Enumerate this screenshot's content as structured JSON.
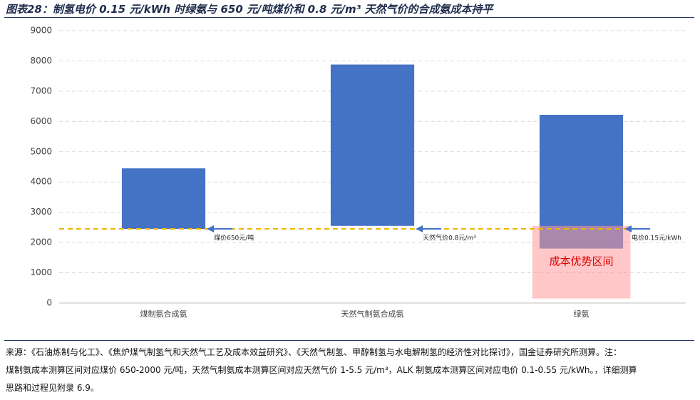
{
  "chart_data": {
    "type": "floating_bar",
    "title": "图表28：制氢电价 0.15 元/kWh 时绿氨与 650 元/吨煤价和 0.8 元/m³ 天然气价的合成氨成本持平",
    "categories": [
      "煤制氨合成氨",
      "天然气制氨合成氨",
      "绿氨"
    ],
    "low": [
      2450,
      2550,
      1800
    ],
    "high": [
      4450,
      7880,
      6220
    ],
    "color": "#4472c4",
    "ylim": [
      0,
      9000
    ],
    "yticks": [
      0,
      1000,
      2000,
      3000,
      4000,
      5000,
      6000,
      7000,
      8000,
      9000
    ],
    "grid": true,
    "reference_line": 2450,
    "reference_color": "#f0b400",
    "annotations": [
      "煤价650元/吨",
      "天然气价0.8元/m³",
      "电价0.15元/kWh"
    ],
    "zone": {
      "label": "成本优势区间",
      "range": [
        150,
        2550
      ],
      "color": "#ff9999"
    },
    "note": [
      "来源：《石油炼制与化工》、《焦炉煤气制氢气和天然气工艺及成本效益研究》、《天然气制氢、甲醇制氢与水电解制氢的经济性对比探讨》，国金证券研究所测算。注：",
      "煤制氨成本测算区间对应煤价 650-2000 元/吨，天然气制氨成本测算区间对应天然气价 1-5.5 元/m³，ALK 制氨成本测算区间对应电价 0.1-0.55 元/kWh。，详细测算",
      "思路和过程见附录 6.9。"
    ]
  }
}
